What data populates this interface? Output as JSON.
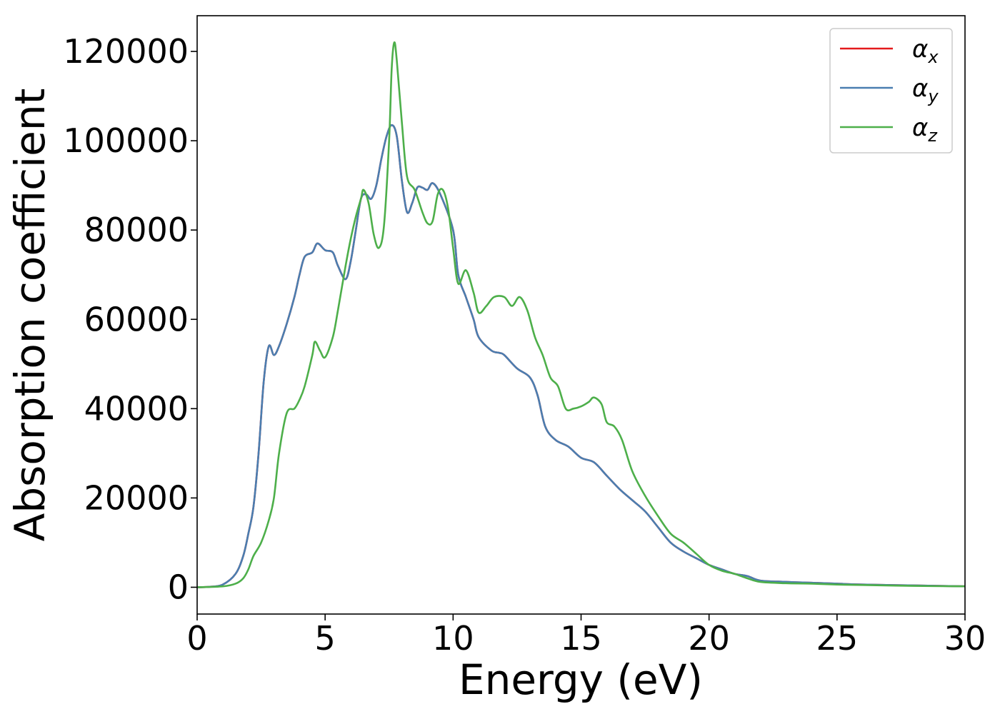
{
  "chart_data": {
    "type": "line",
    "title": "",
    "xlabel": "Energy (eV)",
    "ylabel": "Absorption coefficient",
    "xlim": [
      0,
      30
    ],
    "ylim": [
      -6000,
      128000
    ],
    "xticks": [
      0,
      5,
      10,
      15,
      20,
      25,
      30
    ],
    "yticks": [
      0,
      20000,
      40000,
      60000,
      80000,
      100000,
      120000
    ],
    "grid": false,
    "legend_position": "top-right",
    "series": [
      {
        "name": "α_x",
        "label_main": "α",
        "label_sub": "x",
        "color": "#e41a1c",
        "points": [
          [
            0,
            0
          ],
          [
            0.5,
            100
          ],
          [
            1.0,
            600
          ],
          [
            1.5,
            3000
          ],
          [
            1.8,
            7000
          ],
          [
            2.0,
            12000
          ],
          [
            2.2,
            18000
          ],
          [
            2.4,
            30000
          ],
          [
            2.6,
            46000
          ],
          [
            2.8,
            54000
          ],
          [
            3.0,
            52000
          ],
          [
            3.2,
            54000
          ],
          [
            3.5,
            59000
          ],
          [
            3.8,
            65000
          ],
          [
            4.0,
            70000
          ],
          [
            4.2,
            74000
          ],
          [
            4.5,
            75000
          ],
          [
            4.7,
            77000
          ],
          [
            5.0,
            75500
          ],
          [
            5.3,
            75000
          ],
          [
            5.5,
            72000
          ],
          [
            5.8,
            69000
          ],
          [
            6.0,
            73000
          ],
          [
            6.2,
            80000
          ],
          [
            6.4,
            87000
          ],
          [
            6.6,
            88000
          ],
          [
            6.8,
            87000
          ],
          [
            7.0,
            90000
          ],
          [
            7.2,
            96000
          ],
          [
            7.4,
            101000
          ],
          [
            7.6,
            103500
          ],
          [
            7.8,
            101000
          ],
          [
            8.0,
            91000
          ],
          [
            8.2,
            84000
          ],
          [
            8.4,
            86000
          ],
          [
            8.6,
            89500
          ],
          [
            8.8,
            89500
          ],
          [
            9.0,
            89000
          ],
          [
            9.2,
            90500
          ],
          [
            9.5,
            88000
          ],
          [
            10.0,
            80000
          ],
          [
            10.2,
            70000
          ],
          [
            10.5,
            65000
          ],
          [
            10.8,
            60000
          ],
          [
            11.0,
            56000
          ],
          [
            11.5,
            53000
          ],
          [
            11.8,
            52500
          ],
          [
            12.0,
            52000
          ],
          [
            12.5,
            49000
          ],
          [
            13.0,
            47000
          ],
          [
            13.3,
            43000
          ],
          [
            13.6,
            36000
          ],
          [
            14.0,
            33000
          ],
          [
            14.5,
            31500
          ],
          [
            15.0,
            29000
          ],
          [
            15.5,
            28000
          ],
          [
            16.0,
            25000
          ],
          [
            16.5,
            22000
          ],
          [
            17.0,
            19500
          ],
          [
            17.5,
            17000
          ],
          [
            18.0,
            13500
          ],
          [
            18.5,
            10000
          ],
          [
            19.0,
            8000
          ],
          [
            19.5,
            6500
          ],
          [
            20.0,
            5000
          ],
          [
            20.5,
            4000
          ],
          [
            21.0,
            3000
          ],
          [
            21.5,
            2500
          ],
          [
            22.0,
            1500
          ],
          [
            23.0,
            1200
          ],
          [
            24.0,
            1000
          ],
          [
            25.0,
            800
          ],
          [
            26.0,
            600
          ],
          [
            28.0,
            400
          ],
          [
            30.0,
            200
          ]
        ]
      },
      {
        "name": "α_y",
        "label_main": "α",
        "label_sub": "y",
        "color": "#4a7eb0",
        "points": [
          [
            0,
            0
          ],
          [
            0.5,
            100
          ],
          [
            1.0,
            600
          ],
          [
            1.5,
            3000
          ],
          [
            1.8,
            7000
          ],
          [
            2.0,
            12000
          ],
          [
            2.2,
            18000
          ],
          [
            2.4,
            30000
          ],
          [
            2.6,
            46000
          ],
          [
            2.8,
            54000
          ],
          [
            3.0,
            52000
          ],
          [
            3.2,
            54000
          ],
          [
            3.5,
            59000
          ],
          [
            3.8,
            65000
          ],
          [
            4.0,
            70000
          ],
          [
            4.2,
            74000
          ],
          [
            4.5,
            75000
          ],
          [
            4.7,
            77000
          ],
          [
            5.0,
            75500
          ],
          [
            5.3,
            75000
          ],
          [
            5.5,
            72000
          ],
          [
            5.8,
            69000
          ],
          [
            6.0,
            73000
          ],
          [
            6.2,
            80000
          ],
          [
            6.4,
            87000
          ],
          [
            6.6,
            88000
          ],
          [
            6.8,
            87000
          ],
          [
            7.0,
            90000
          ],
          [
            7.2,
            96000
          ],
          [
            7.4,
            101000
          ],
          [
            7.6,
            103500
          ],
          [
            7.8,
            101000
          ],
          [
            8.0,
            91000
          ],
          [
            8.2,
            84000
          ],
          [
            8.4,
            86000
          ],
          [
            8.6,
            89500
          ],
          [
            8.8,
            89500
          ],
          [
            9.0,
            89000
          ],
          [
            9.2,
            90500
          ],
          [
            9.5,
            88000
          ],
          [
            10.0,
            80000
          ],
          [
            10.2,
            70000
          ],
          [
            10.5,
            65000
          ],
          [
            10.8,
            60000
          ],
          [
            11.0,
            56000
          ],
          [
            11.5,
            53000
          ],
          [
            11.8,
            52500
          ],
          [
            12.0,
            52000
          ],
          [
            12.5,
            49000
          ],
          [
            13.0,
            47000
          ],
          [
            13.3,
            43000
          ],
          [
            13.6,
            36000
          ],
          [
            14.0,
            33000
          ],
          [
            14.5,
            31500
          ],
          [
            15.0,
            29000
          ],
          [
            15.5,
            28000
          ],
          [
            16.0,
            25000
          ],
          [
            16.5,
            22000
          ],
          [
            17.0,
            19500
          ],
          [
            17.5,
            17000
          ],
          [
            18.0,
            13500
          ],
          [
            18.5,
            10000
          ],
          [
            19.0,
            8000
          ],
          [
            19.5,
            6500
          ],
          [
            20.0,
            5000
          ],
          [
            20.5,
            4000
          ],
          [
            21.0,
            3000
          ],
          [
            21.5,
            2500
          ],
          [
            22.0,
            1500
          ],
          [
            23.0,
            1200
          ],
          [
            24.0,
            1000
          ],
          [
            25.0,
            800
          ],
          [
            26.0,
            600
          ],
          [
            28.0,
            400
          ],
          [
            30.0,
            200
          ]
        ]
      },
      {
        "name": "α_z",
        "label_main": "α",
        "label_sub": "z",
        "color": "#4daf4a",
        "points": [
          [
            0,
            0
          ],
          [
            1.0,
            200
          ],
          [
            1.5,
            800
          ],
          [
            1.8,
            2000
          ],
          [
            2.0,
            4000
          ],
          [
            2.2,
            7000
          ],
          [
            2.5,
            10000
          ],
          [
            2.8,
            15000
          ],
          [
            3.0,
            20000
          ],
          [
            3.2,
            30000
          ],
          [
            3.5,
            39000
          ],
          [
            3.8,
            40000
          ],
          [
            4.0,
            42000
          ],
          [
            4.2,
            45000
          ],
          [
            4.5,
            52000
          ],
          [
            4.6,
            55000
          ],
          [
            4.8,
            53000
          ],
          [
            5.0,
            51500
          ],
          [
            5.3,
            56000
          ],
          [
            5.5,
            62000
          ],
          [
            5.8,
            72000
          ],
          [
            6.0,
            78000
          ],
          [
            6.2,
            83000
          ],
          [
            6.4,
            87000
          ],
          [
            6.5,
            89000
          ],
          [
            6.7,
            86000
          ],
          [
            6.9,
            79000
          ],
          [
            7.1,
            76000
          ],
          [
            7.3,
            81000
          ],
          [
            7.5,
            100000
          ],
          [
            7.6,
            116000
          ],
          [
            7.7,
            122000
          ],
          [
            7.8,
            118000
          ],
          [
            8.0,
            104000
          ],
          [
            8.2,
            92000
          ],
          [
            8.5,
            89000
          ],
          [
            8.8,
            84000
          ],
          [
            9.0,
            81500
          ],
          [
            9.2,
            82000
          ],
          [
            9.4,
            88000
          ],
          [
            9.6,
            89000
          ],
          [
            9.8,
            85000
          ],
          [
            10.0,
            76000
          ],
          [
            10.2,
            68000
          ],
          [
            10.5,
            71000
          ],
          [
            10.8,
            66000
          ],
          [
            11.0,
            61500
          ],
          [
            11.3,
            63000
          ],
          [
            11.6,
            65000
          ],
          [
            12.0,
            65000
          ],
          [
            12.3,
            63000
          ],
          [
            12.6,
            65000
          ],
          [
            12.9,
            62000
          ],
          [
            13.2,
            56000
          ],
          [
            13.5,
            52000
          ],
          [
            13.8,
            47000
          ],
          [
            14.1,
            45000
          ],
          [
            14.4,
            40000
          ],
          [
            14.7,
            40000
          ],
          [
            15.0,
            40500
          ],
          [
            15.3,
            41500
          ],
          [
            15.5,
            42500
          ],
          [
            15.8,
            41000
          ],
          [
            16.0,
            37000
          ],
          [
            16.3,
            36000
          ],
          [
            16.6,
            33000
          ],
          [
            17.0,
            26000
          ],
          [
            17.5,
            20500
          ],
          [
            18.0,
            16000
          ],
          [
            18.5,
            12000
          ],
          [
            19.0,
            10000
          ],
          [
            19.5,
            7500
          ],
          [
            20.0,
            5000
          ],
          [
            20.5,
            3700
          ],
          [
            21.0,
            3000
          ],
          [
            21.5,
            2000
          ],
          [
            22.0,
            1200
          ],
          [
            23.0,
            900
          ],
          [
            24.0,
            800
          ],
          [
            25.0,
            600
          ],
          [
            26.0,
            500
          ],
          [
            28.0,
            300
          ],
          [
            30.0,
            200
          ]
        ]
      }
    ]
  }
}
